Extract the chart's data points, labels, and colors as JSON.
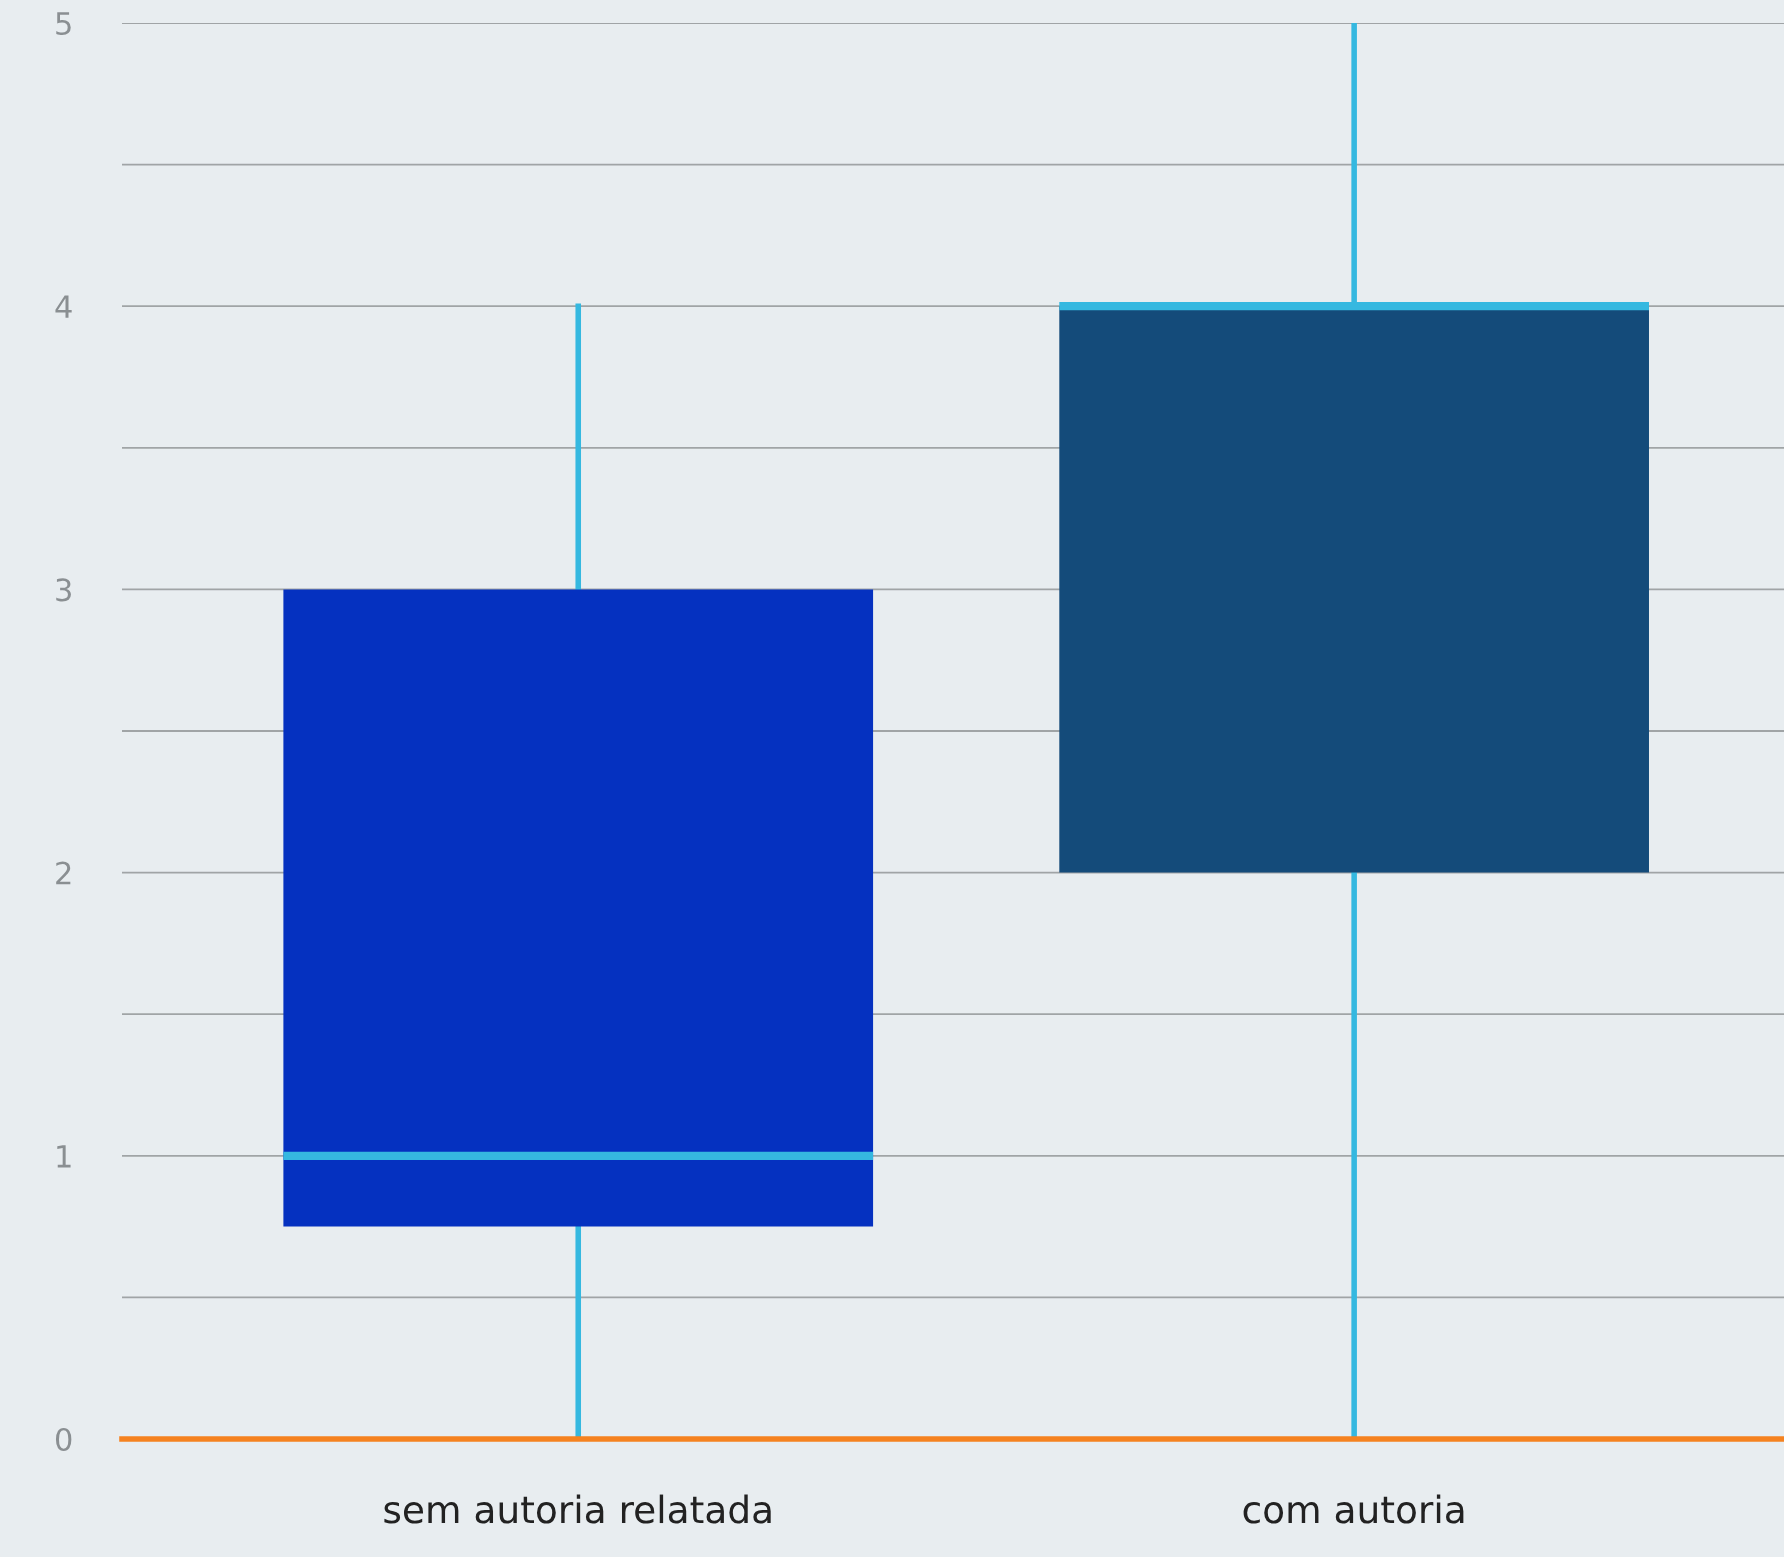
{
  "chart_data": {
    "type": "box",
    "categories": [
      "sem autoria relatada",
      "com autoria"
    ],
    "boxes": [
      {
        "low": 0,
        "q1": 0.75,
        "median": 1,
        "q3": 3,
        "high": 4
      },
      {
        "low": 0,
        "q1": 2,
        "median": 4,
        "q3": 4,
        "high": 5
      }
    ],
    "colors": [
      "#0531c0",
      "#144b7a"
    ],
    "ylim": [
      0,
      5
    ],
    "yticks": [
      0,
      {
        "value": 0.5,
        "label": null
      },
      1,
      {
        "value": 1.5,
        "label": null
      },
      2,
      {
        "value": 2.5,
        "label": null
      },
      3,
      {
        "value": 3.5,
        "label": null
      },
      4,
      {
        "value": 4.5,
        "label": null
      },
      5
    ],
    "grid": "y"
  }
}
